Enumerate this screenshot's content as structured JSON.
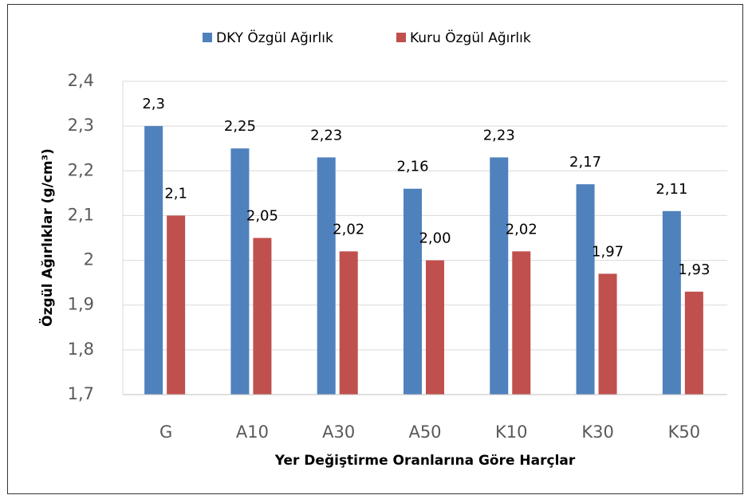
{
  "chart_data": {
    "type": "bar",
    "x_label": "Yer Değiştirme Oranlarına Göre Harçlar",
    "y_label": "Özgül Ağırlıklar (g/cm³)",
    "categories": [
      "G",
      "A10",
      "A30",
      "A50",
      "K10",
      "K30",
      "K50"
    ],
    "series": [
      {
        "name": "DKY Özgül Ağırlık",
        "color": "#4f81bd",
        "values": [
          2.3,
          2.25,
          2.23,
          2.16,
          2.23,
          2.17,
          2.11
        ],
        "value_labels": [
          "2,3",
          "2,25",
          "2,23",
          "2,16",
          "2,23",
          "2,17",
          "2,11"
        ]
      },
      {
        "name": "Kuru Özgül Ağırlık",
        "color": "#c0504d",
        "values": [
          2.1,
          2.05,
          2.02,
          2.0,
          2.02,
          1.97,
          1.93
        ],
        "value_labels": [
          "2,1",
          "2,05",
          "2,02",
          "2,00",
          "2,02",
          "1,97",
          "1,93"
        ]
      }
    ],
    "ylim": [
      1.7,
      2.4
    ],
    "yticks": [
      {
        "value": 1.7,
        "label": "1,7"
      },
      {
        "value": 1.8,
        "label": "1,8"
      },
      {
        "value": 1.9,
        "label": "1,9"
      },
      2,
      {
        "value": 2.1,
        "label": "2,1"
      },
      {
        "value": 2.2,
        "label": "2,2"
      },
      {
        "value": 2.3,
        "label": "2,3"
      },
      {
        "value": 2.4,
        "label": "2,4"
      }
    ],
    "grid": true,
    "legend": "top"
  }
}
